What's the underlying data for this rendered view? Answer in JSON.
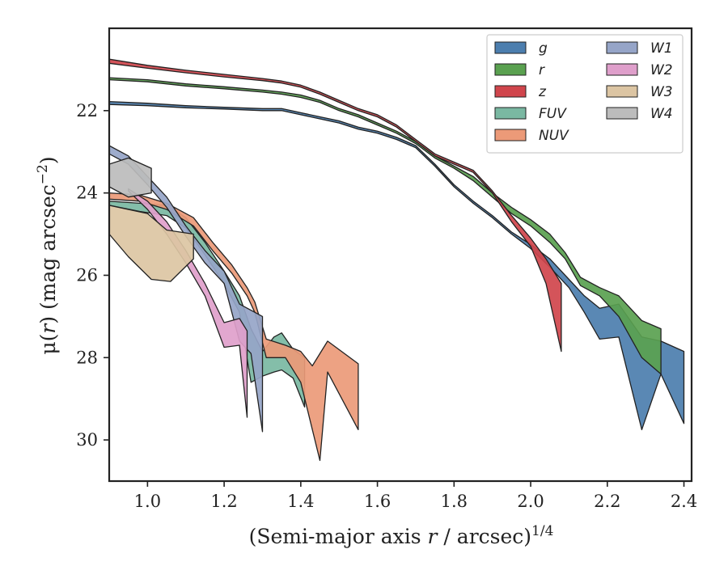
{
  "chart_data": {
    "type": "area",
    "xlabel": "(Semi-major axis r / arcsec)",
    "xlabel_parts": [
      "(Semi-major axis ",
      "r",
      " / arcsec)",
      "1/4"
    ],
    "ylabel_parts": [
      "μ(",
      "r",
      ") (mag arcsec",
      "−2",
      ")"
    ],
    "xlim": [
      0.9,
      2.42
    ],
    "ylim": [
      31.0,
      20.0
    ],
    "y_inverted": true,
    "xticks": [
      1.0,
      1.2,
      1.4,
      1.6,
      1.8,
      2.0,
      2.2,
      2.4
    ],
    "xtick_labels": [
      "1.0",
      "1.2",
      "1.4",
      "1.6",
      "1.8",
      "2.0",
      "2.2",
      "2.4"
    ],
    "yticks": [
      22,
      24,
      26,
      28,
      30
    ],
    "ytick_labels": [
      "22",
      "24",
      "26",
      "28",
      "30"
    ],
    "grid": false,
    "legend_position": "top-right",
    "legend_columns": 2,
    "series": [
      {
        "name": "g",
        "color": "#4c7eae",
        "upper": [
          [
            0.9,
            21.78
          ],
          [
            1.0,
            21.82
          ],
          [
            1.1,
            21.88
          ],
          [
            1.2,
            21.92
          ],
          [
            1.3,
            21.95
          ],
          [
            1.35,
            21.95
          ],
          [
            1.4,
            22.05
          ],
          [
            1.45,
            22.15
          ],
          [
            1.5,
            22.25
          ],
          [
            1.55,
            22.4
          ],
          [
            1.6,
            22.5
          ],
          [
            1.65,
            22.65
          ],
          [
            1.7,
            22.85
          ],
          [
            1.75,
            23.3
          ],
          [
            1.8,
            23.8
          ],
          [
            1.85,
            24.2
          ],
          [
            1.9,
            24.55
          ],
          [
            1.95,
            24.95
          ],
          [
            2.0,
            25.25
          ],
          [
            2.05,
            25.6
          ],
          [
            2.1,
            26.1
          ],
          [
            2.14,
            26.5
          ],
          [
            2.18,
            26.8
          ],
          [
            2.23,
            26.7
          ],
          [
            2.29,
            27.5
          ],
          [
            2.34,
            27.6
          ],
          [
            2.4,
            27.85
          ]
        ],
        "lower": [
          [
            0.9,
            21.85
          ],
          [
            1.0,
            21.88
          ],
          [
            1.1,
            21.93
          ],
          [
            1.2,
            21.96
          ],
          [
            1.3,
            22.0
          ],
          [
            1.35,
            22.0
          ],
          [
            1.4,
            22.1
          ],
          [
            1.45,
            22.2
          ],
          [
            1.5,
            22.3
          ],
          [
            1.55,
            22.45
          ],
          [
            1.6,
            22.55
          ],
          [
            1.65,
            22.7
          ],
          [
            1.7,
            22.9
          ],
          [
            1.75,
            23.35
          ],
          [
            1.8,
            23.85
          ],
          [
            1.85,
            24.25
          ],
          [
            1.9,
            24.6
          ],
          [
            1.95,
            25.0
          ],
          [
            2.0,
            25.35
          ],
          [
            2.05,
            25.8
          ],
          [
            2.1,
            26.3
          ],
          [
            2.14,
            26.9
          ],
          [
            2.18,
            27.55
          ],
          [
            2.23,
            27.5
          ],
          [
            2.29,
            29.75
          ],
          [
            2.34,
            28.4
          ],
          [
            2.4,
            29.6
          ]
        ]
      },
      {
        "name": "r",
        "color": "#5aa150",
        "upper": [
          [
            0.9,
            21.2
          ],
          [
            1.0,
            21.25
          ],
          [
            1.1,
            21.35
          ],
          [
            1.2,
            21.42
          ],
          [
            1.3,
            21.5
          ],
          [
            1.35,
            21.55
          ],
          [
            1.4,
            21.62
          ],
          [
            1.45,
            21.75
          ],
          [
            1.5,
            21.95
          ],
          [
            1.55,
            22.1
          ],
          [
            1.6,
            22.3
          ],
          [
            1.65,
            22.5
          ],
          [
            1.7,
            22.75
          ],
          [
            1.75,
            23.1
          ],
          [
            1.8,
            23.35
          ],
          [
            1.85,
            23.6
          ],
          [
            1.9,
            24.0
          ],
          [
            1.95,
            24.35
          ],
          [
            2.0,
            24.65
          ],
          [
            2.05,
            25.0
          ],
          [
            2.09,
            25.45
          ],
          [
            2.13,
            26.05
          ],
          [
            2.18,
            26.3
          ],
          [
            2.23,
            26.5
          ],
          [
            2.29,
            27.1
          ],
          [
            2.34,
            27.3
          ]
        ],
        "lower": [
          [
            0.9,
            21.25
          ],
          [
            1.0,
            21.3
          ],
          [
            1.1,
            21.4
          ],
          [
            1.2,
            21.47
          ],
          [
            1.3,
            21.55
          ],
          [
            1.35,
            21.6
          ],
          [
            1.4,
            21.68
          ],
          [
            1.45,
            21.8
          ],
          [
            1.5,
            22.0
          ],
          [
            1.55,
            22.15
          ],
          [
            1.6,
            22.35
          ],
          [
            1.65,
            22.55
          ],
          [
            1.7,
            22.8
          ],
          [
            1.75,
            23.15
          ],
          [
            1.8,
            23.4
          ],
          [
            1.85,
            23.7
          ],
          [
            1.9,
            24.1
          ],
          [
            1.95,
            24.5
          ],
          [
            2.0,
            24.8
          ],
          [
            2.05,
            25.2
          ],
          [
            2.09,
            25.6
          ],
          [
            2.13,
            26.25
          ],
          [
            2.18,
            26.5
          ],
          [
            2.23,
            27.0
          ],
          [
            2.29,
            28.0
          ],
          [
            2.34,
            28.4
          ]
        ]
      },
      {
        "name": "z",
        "color": "#d0454c",
        "upper": [
          [
            0.9,
            20.75
          ],
          [
            1.0,
            20.9
          ],
          [
            1.1,
            21.02
          ],
          [
            1.2,
            21.12
          ],
          [
            1.3,
            21.22
          ],
          [
            1.35,
            21.28
          ],
          [
            1.4,
            21.38
          ],
          [
            1.45,
            21.55
          ],
          [
            1.5,
            21.75
          ],
          [
            1.55,
            21.95
          ],
          [
            1.6,
            22.1
          ],
          [
            1.65,
            22.35
          ],
          [
            1.7,
            22.7
          ],
          [
            1.75,
            23.05
          ],
          [
            1.8,
            23.25
          ],
          [
            1.85,
            23.45
          ],
          [
            1.9,
            23.95
          ],
          [
            1.95,
            24.55
          ],
          [
            2.0,
            25.1
          ],
          [
            2.04,
            25.6
          ],
          [
            2.08,
            26.2
          ]
        ],
        "lower": [
          [
            0.9,
            20.85
          ],
          [
            1.0,
            20.97
          ],
          [
            1.1,
            21.08
          ],
          [
            1.2,
            21.18
          ],
          [
            1.3,
            21.27
          ],
          [
            1.35,
            21.33
          ],
          [
            1.4,
            21.43
          ],
          [
            1.45,
            21.6
          ],
          [
            1.5,
            21.8
          ],
          [
            1.55,
            22.0
          ],
          [
            1.6,
            22.15
          ],
          [
            1.65,
            22.4
          ],
          [
            1.7,
            22.75
          ],
          [
            1.75,
            23.1
          ],
          [
            1.8,
            23.3
          ],
          [
            1.85,
            23.5
          ],
          [
            1.9,
            24.0
          ],
          [
            1.95,
            24.7
          ],
          [
            2.0,
            25.3
          ],
          [
            2.04,
            26.2
          ],
          [
            2.08,
            27.85
          ]
        ]
      },
      {
        "name": "FUV",
        "color": "#7ab8a2",
        "upper": [
          [
            0.9,
            24.2
          ],
          [
            0.98,
            24.25
          ],
          [
            1.05,
            24.3
          ],
          [
            1.1,
            24.6
          ],
          [
            1.15,
            25.2
          ],
          [
            1.2,
            25.9
          ],
          [
            1.24,
            26.5
          ],
          [
            1.27,
            27.3
          ],
          [
            1.3,
            27.85
          ],
          [
            1.33,
            27.5
          ],
          [
            1.35,
            27.4
          ],
          [
            1.38,
            27.8
          ],
          [
            1.41,
            28.0
          ]
        ],
        "lower": [
          [
            0.9,
            24.3
          ],
          [
            0.98,
            24.45
          ],
          [
            1.05,
            24.55
          ],
          [
            1.1,
            24.85
          ],
          [
            1.15,
            25.5
          ],
          [
            1.2,
            26.2
          ],
          [
            1.24,
            26.9
          ],
          [
            1.27,
            28.6
          ],
          [
            1.3,
            28.45
          ],
          [
            1.33,
            28.35
          ],
          [
            1.35,
            28.3
          ],
          [
            1.38,
            28.5
          ],
          [
            1.41,
            29.2
          ]
        ]
      },
      {
        "name": "NUV",
        "color": "#ec9a78",
        "upper": [
          [
            0.9,
            24.0
          ],
          [
            0.98,
            24.05
          ],
          [
            1.05,
            24.25
          ],
          [
            1.12,
            24.6
          ],
          [
            1.17,
            25.2
          ],
          [
            1.22,
            25.75
          ],
          [
            1.26,
            26.3
          ],
          [
            1.28,
            26.65
          ],
          [
            1.31,
            27.55
          ],
          [
            1.36,
            27.7
          ],
          [
            1.4,
            27.85
          ],
          [
            1.43,
            28.2
          ],
          [
            1.47,
            27.6
          ],
          [
            1.55,
            28.15
          ]
        ],
        "lower": [
          [
            0.9,
            24.15
          ],
          [
            0.98,
            24.2
          ],
          [
            1.05,
            24.4
          ],
          [
            1.12,
            24.8
          ],
          [
            1.17,
            25.4
          ],
          [
            1.22,
            25.95
          ],
          [
            1.26,
            26.5
          ],
          [
            1.28,
            26.9
          ],
          [
            1.31,
            28.0
          ],
          [
            1.36,
            28.0
          ],
          [
            1.4,
            28.6
          ],
          [
            1.45,
            30.5
          ],
          [
            1.47,
            28.35
          ],
          [
            1.55,
            29.75
          ]
        ]
      },
      {
        "name": "W1",
        "color": "#96a5c8",
        "upper": [
          [
            0.9,
            22.85
          ],
          [
            0.95,
            23.1
          ],
          [
            1.0,
            23.6
          ],
          [
            1.05,
            24.1
          ],
          [
            1.1,
            24.8
          ],
          [
            1.15,
            25.4
          ],
          [
            1.2,
            25.9
          ],
          [
            1.24,
            26.7
          ],
          [
            1.27,
            26.85
          ],
          [
            1.3,
            27.0
          ]
        ],
        "lower": [
          [
            0.9,
            23.05
          ],
          [
            0.95,
            23.3
          ],
          [
            1.0,
            23.8
          ],
          [
            1.05,
            24.35
          ],
          [
            1.1,
            25.05
          ],
          [
            1.15,
            25.7
          ],
          [
            1.2,
            26.2
          ],
          [
            1.24,
            27.6
          ],
          [
            1.27,
            27.9
          ],
          [
            1.3,
            29.8
          ]
        ]
      },
      {
        "name": "W2",
        "color": "#df9fcb",
        "upper": [
          [
            0.95,
            23.9
          ],
          [
            1.0,
            24.2
          ],
          [
            1.05,
            24.7
          ],
          [
            1.1,
            25.4
          ],
          [
            1.15,
            26.2
          ],
          [
            1.2,
            27.15
          ],
          [
            1.24,
            27.05
          ],
          [
            1.26,
            27.35
          ]
        ],
        "lower": [
          [
            0.95,
            23.95
          ],
          [
            1.0,
            24.4
          ],
          [
            1.05,
            25.0
          ],
          [
            1.1,
            25.7
          ],
          [
            1.15,
            26.5
          ],
          [
            1.2,
            27.75
          ],
          [
            1.24,
            27.7
          ],
          [
            1.26,
            29.45
          ]
        ]
      },
      {
        "name": "W3",
        "color": "#dcc5a3",
        "upper": [
          [
            0.9,
            24.3
          ],
          [
            1.0,
            24.5
          ],
          [
            1.05,
            24.9
          ],
          [
            1.12,
            25.0
          ]
        ],
        "lower": [
          [
            0.9,
            25.0
          ],
          [
            0.95,
            25.55
          ],
          [
            1.01,
            26.1
          ],
          [
            1.06,
            26.15
          ],
          [
            1.12,
            25.6
          ]
        ]
      },
      {
        "name": "W4",
        "color": "#bcbcbc",
        "upper": [
          [
            0.9,
            23.3
          ],
          [
            0.95,
            23.15
          ],
          [
            1.01,
            23.4
          ]
        ],
        "lower": [
          [
            0.9,
            23.85
          ],
          [
            0.95,
            24.1
          ],
          [
            1.01,
            24.0
          ]
        ]
      }
    ]
  }
}
